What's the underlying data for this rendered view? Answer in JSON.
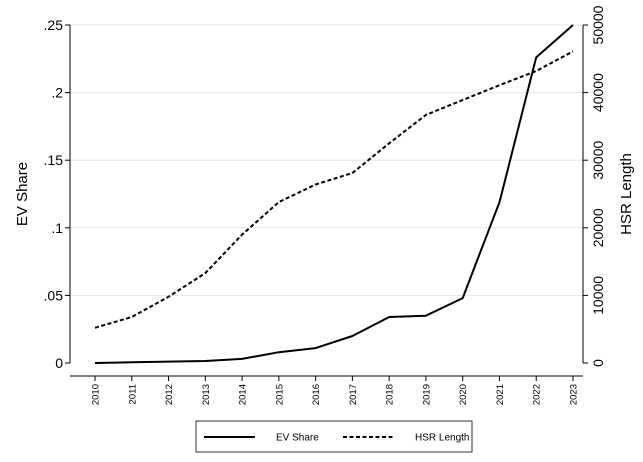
{
  "chart_data": {
    "type": "line",
    "x": [
      "2010",
      "2011",
      "2012",
      "2013",
      "2014",
      "2015",
      "2016",
      "2017",
      "2018",
      "2019",
      "2020",
      "2021",
      "2022",
      "2023"
    ],
    "series": [
      {
        "name": "EV Share",
        "axis": "left",
        "style": "solid",
        "values": [
          0,
          0.0005,
          0.001,
          0.0015,
          0.003,
          0.008,
          0.011,
          0.02,
          0.034,
          0.035,
          0.048,
          0.119,
          0.226,
          0.25
        ]
      },
      {
        "name": "HSR Length",
        "axis": "right",
        "style": "dashed",
        "values": [
          5200,
          6800,
          9800,
          13300,
          19000,
          23800,
          26400,
          28100,
          32500,
          36700,
          38900,
          41100,
          43200,
          46100
        ]
      }
    ],
    "ylabel_left": "EV Share",
    "ylabel_right": "HSR Length",
    "ylim_left": [
      0,
      0.25
    ],
    "ylim_right": [
      0,
      50000
    ],
    "yticks_left": [
      {
        "value": 0,
        "label": "0"
      },
      {
        "value": 0.05,
        "label": ".05"
      },
      {
        "value": 0.1,
        "label": ".1"
      },
      {
        "value": 0.15,
        "label": ".15"
      },
      {
        "value": 0.2,
        "label": ".2"
      },
      {
        "value": 0.25,
        "label": ".25"
      }
    ],
    "yticks_right": [
      {
        "value": 0,
        "label": "0"
      },
      {
        "value": 10000,
        "label": "10000"
      },
      {
        "value": 20000,
        "label": "20000"
      },
      {
        "value": 30000,
        "label": "30000"
      },
      {
        "value": 40000,
        "label": "40000"
      },
      {
        "value": 50000,
        "label": "50000"
      }
    ],
    "grid": true,
    "legend_position": "bottom",
    "colors": {
      "line": "#000000",
      "grid": "#e6e6e6"
    }
  }
}
